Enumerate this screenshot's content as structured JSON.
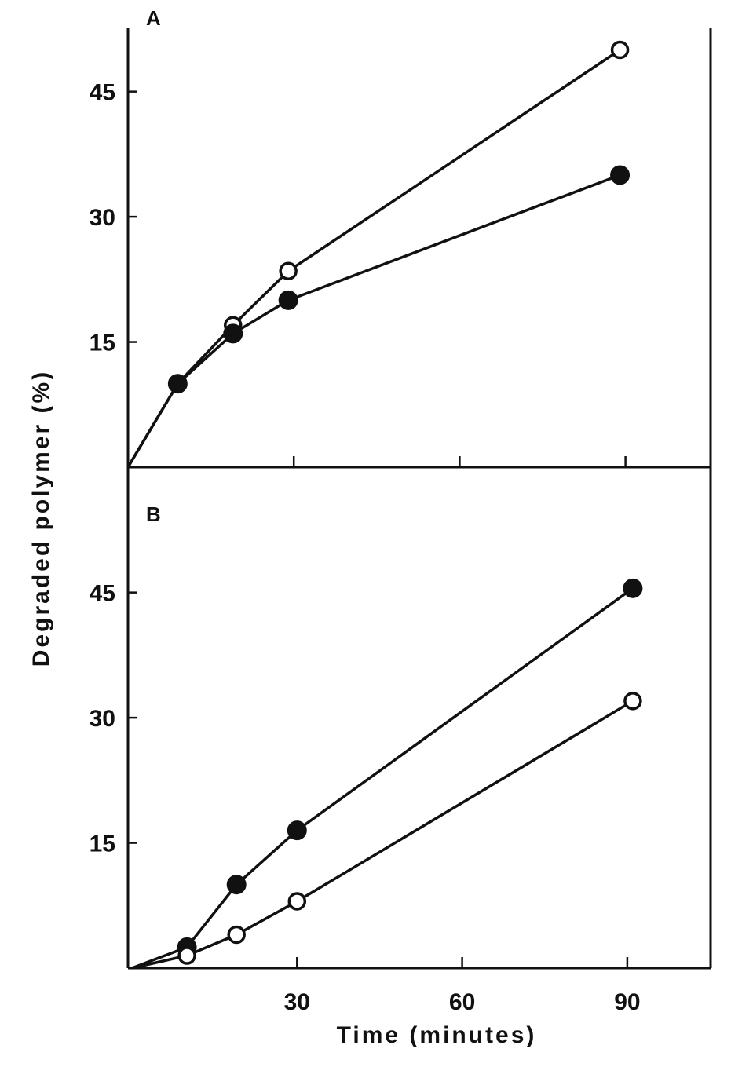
{
  "chart_data": [
    {
      "type": "line",
      "panel_label": "A",
      "xlabel": "Time (minutes)",
      "ylabel": "Degraded polymer (%)",
      "xlim": [
        0,
        105
      ],
      "ylim": [
        0,
        45
      ],
      "xticks": [
        30,
        60,
        90
      ],
      "yticks": [
        15,
        30,
        45
      ],
      "ytick_labels": [
        "15",
        "30",
        "45"
      ],
      "series": [
        {
          "marker": "open-circle",
          "x": [
            0,
            9,
            19,
            29,
            89
          ],
          "y": [
            0,
            10,
            17,
            23.5,
            50
          ]
        },
        {
          "marker": "filled-circle",
          "x": [
            0,
            9,
            19,
            29,
            89
          ],
          "y": [
            0,
            10,
            16,
            20,
            35
          ]
        }
      ]
    },
    {
      "type": "line",
      "panel_label": "B",
      "xlabel": "Time (minutes)",
      "ylabel": "Degraded polymer (%)",
      "xlim": [
        0,
        105
      ],
      "ylim": [
        0,
        45
      ],
      "xticks": [
        30,
        60,
        90
      ],
      "xtick_labels": [
        "30",
        "60",
        "90"
      ],
      "yticks": [
        15,
        30,
        45
      ],
      "ytick_labels": [
        "15",
        "30",
        "45"
      ],
      "series": [
        {
          "marker": "filled-circle",
          "x": [
            0,
            10,
            19,
            30,
            91
          ],
          "y": [
            0,
            2.5,
            10,
            16.5,
            45.5
          ]
        },
        {
          "marker": "open-circle",
          "x": [
            0,
            10,
            19,
            30,
            91
          ],
          "y": [
            0,
            1.5,
            4,
            8,
            32
          ]
        }
      ]
    }
  ]
}
